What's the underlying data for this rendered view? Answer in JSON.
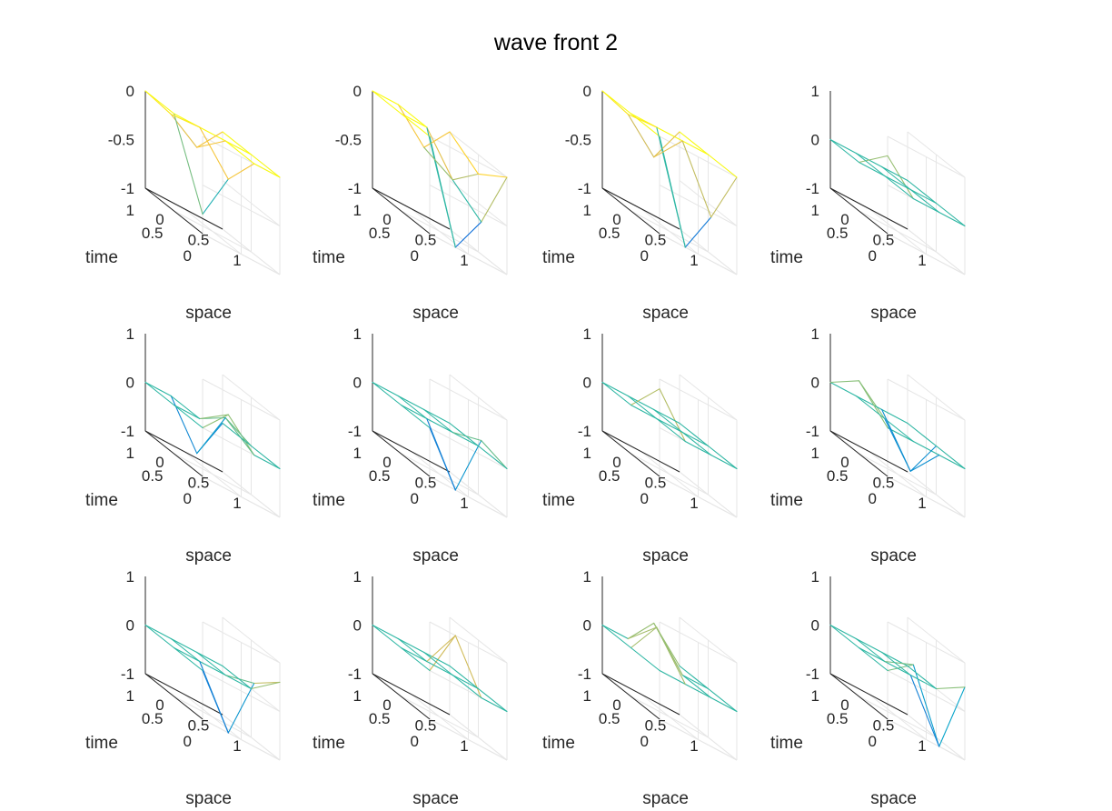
{
  "chart_data": {
    "type": "surface-mesh-3d",
    "title": "wave front 2",
    "layout": {
      "rows": 3,
      "cols": 4
    },
    "x_axis": {
      "label": "space",
      "ticks": [
        "0",
        "0.5",
        "1"
      ],
      "range": [
        0,
        1
      ]
    },
    "y_axis": {
      "label": "time",
      "ticks": [
        "0",
        "0.5",
        "1"
      ],
      "range": [
        0,
        1
      ]
    },
    "grid_x": [
      0,
      0.333,
      0.667,
      1
    ],
    "grid_y": [
      0,
      0.5,
      1
    ],
    "colormap": "parula",
    "colormap_stops": [
      "#352a87",
      "#0f5cdd",
      "#1481d6",
      "#06a4ca",
      "#2eb7a4",
      "#87bf77",
      "#d1bb59",
      "#fec832",
      "#f9fb0e"
    ],
    "panels": [
      {
        "zlim": [
          -1,
          0
        ],
        "zticks": [
          "-1",
          "-0.5",
          "0"
        ],
        "clim": [
          -1,
          0
        ],
        "z": [
          [
            -0.8,
            -0.3,
            0,
            0
          ],
          [
            0,
            0,
            0,
            0
          ],
          [
            0,
            -0.1,
            -0.3,
            0
          ]
        ]
      },
      {
        "zlim": [
          -1,
          0
        ],
        "zticks": [
          "-1",
          "-0.5",
          "0"
        ],
        "clim": [
          -1,
          0
        ],
        "z": [
          [
            0,
            -1,
            -0.6,
            0
          ],
          [
            0,
            0,
            -0.4,
            -0.2
          ],
          [
            0,
            0,
            -0.3,
            0
          ]
        ]
      },
      {
        "zlim": [
          -1,
          0
        ],
        "zticks": [
          "-1",
          "-0.5",
          "0"
        ],
        "clim": [
          -1,
          0
        ],
        "z": [
          [
            0,
            -1,
            -0.55,
            0
          ],
          [
            0,
            0,
            0,
            0
          ],
          [
            0,
            -0.1,
            -0.4,
            0
          ]
        ]
      },
      {
        "zlim": [
          -1,
          1
        ],
        "zticks": [
          "-1",
          "0",
          "1"
        ],
        "clim": [
          -1,
          1
        ],
        "z": [
          [
            0.6,
            0,
            0,
            0
          ],
          [
            0,
            0,
            0,
            0
          ],
          [
            0,
            0,
            0,
            0
          ]
        ]
      },
      {
        "zlim": [
          -1,
          1
        ],
        "zticks": [
          "-1",
          "0",
          "1"
        ],
        "clim": [
          -1,
          1
        ],
        "z": [
          [
            0,
            0.55,
            0,
            0
          ],
          [
            0,
            0,
            0.3,
            0
          ],
          [
            0,
            0,
            -0.9,
            0
          ]
        ]
      },
      {
        "zlim": [
          -1,
          1
        ],
        "zticks": [
          "-1",
          "0",
          "1"
        ],
        "clim": [
          -1,
          1
        ],
        "z": [
          [
            0,
            -1,
            0.3,
            0
          ],
          [
            0,
            0,
            0,
            0
          ],
          [
            0,
            0,
            0,
            0
          ]
        ]
      },
      {
        "zlim": [
          -1,
          1
        ],
        "zticks": [
          "-1",
          "0",
          "1"
        ],
        "clim": [
          -1,
          1
        ],
        "z": [
          [
            0.8,
            0,
            0,
            0
          ],
          [
            0,
            0,
            0,
            0
          ],
          [
            0,
            0,
            0,
            0
          ]
        ]
      },
      {
        "zlim": [
          -1,
          1
        ],
        "zticks": [
          "-1",
          "0",
          "1"
        ],
        "clim": [
          -1,
          1
        ],
        "z": [
          [
            0,
            0,
            0,
            0
          ],
          [
            0.5,
            0,
            -0.8,
            0
          ],
          [
            0,
            0,
            0,
            0
          ]
        ]
      },
      {
        "zlim": [
          -1,
          1
        ],
        "zticks": [
          "-1",
          "0",
          "1"
        ],
        "clim": [
          -1,
          1
        ],
        "z": [
          [
            0,
            -1,
            0.3,
            0.6
          ],
          [
            0,
            0,
            0,
            0
          ],
          [
            0,
            0,
            0,
            0
          ]
        ]
      },
      {
        "zlim": [
          -1,
          1
        ],
        "zticks": [
          "-1",
          "0",
          "1"
        ],
        "clim": [
          -1,
          1
        ],
        "z": [
          [
            0,
            1,
            0,
            0
          ],
          [
            0,
            0,
            0,
            0
          ],
          [
            0,
            0,
            0,
            0
          ]
        ]
      },
      {
        "zlim": [
          -1,
          1
        ],
        "zticks": [
          "-1",
          "0",
          "1"
        ],
        "clim": [
          -1,
          1
        ],
        "z": [
          [
            0,
            0,
            0,
            0
          ],
          [
            0,
            0.7,
            0,
            0
          ],
          [
            0,
            0,
            0.6,
            0
          ]
        ]
      },
      {
        "zlim": [
          -1,
          1
        ],
        "zticks": [
          "-1",
          "0",
          "1"
        ],
        "clim": [
          -1,
          1
        ],
        "z": [
          [
            0,
            0.4,
            -1,
            0.5
          ],
          [
            0,
            0,
            0,
            0
          ],
          [
            0,
            0,
            0,
            0
          ]
        ]
      }
    ]
  }
}
